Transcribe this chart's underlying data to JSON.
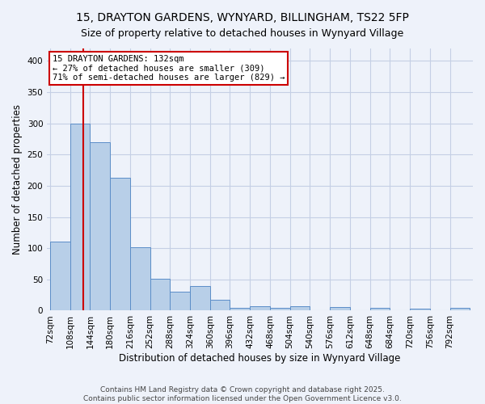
{
  "title1": "15, DRAYTON GARDENS, WYNYARD, BILLINGHAM, TS22 5FP",
  "title2": "Size of property relative to detached houses in Wynyard Village",
  "xlabel": "Distribution of detached houses by size in Wynyard Village",
  "ylabel": "Number of detached properties",
  "bin_labels": [
    "72sqm",
    "108sqm",
    "144sqm",
    "180sqm",
    "216sqm",
    "252sqm",
    "288sqm",
    "324sqm",
    "360sqm",
    "396sqm",
    "432sqm",
    "468sqm",
    "504sqm",
    "540sqm",
    "576sqm",
    "612sqm",
    "648sqm",
    "684sqm",
    "720sqm",
    "756sqm",
    "792sqm"
  ],
  "bar_values": [
    110,
    300,
    270,
    213,
    101,
    51,
    30,
    40,
    17,
    5,
    7,
    5,
    7,
    0,
    6,
    0,
    5,
    0,
    3,
    0,
    5
  ],
  "bar_color": "#b8cfe8",
  "bar_edge_color": "#5b8dc8",
  "background_color": "#eef2fa",
  "grid_color": "#c5cfe5",
  "annotation_text": "15 DRAYTON GARDENS: 132sqm\n← 27% of detached houses are smaller (309)\n71% of semi-detached houses are larger (829) →",
  "annotation_box_facecolor": "#ffffff",
  "annotation_border_color": "#cc0000",
  "vline_color": "#cc0000",
  "footer1": "Contains HM Land Registry data © Crown copyright and database right 2025.",
  "footer2": "Contains public sector information licensed under the Open Government Licence v3.0.",
  "ylim_max": 420,
  "yticks": [
    0,
    50,
    100,
    150,
    200,
    250,
    300,
    350,
    400
  ],
  "title_fontsize": 10,
  "subtitle_fontsize": 9,
  "axis_label_fontsize": 8.5,
  "tick_fontsize": 7.5,
  "annotation_fontsize": 7.5,
  "footer_fontsize": 6.5
}
